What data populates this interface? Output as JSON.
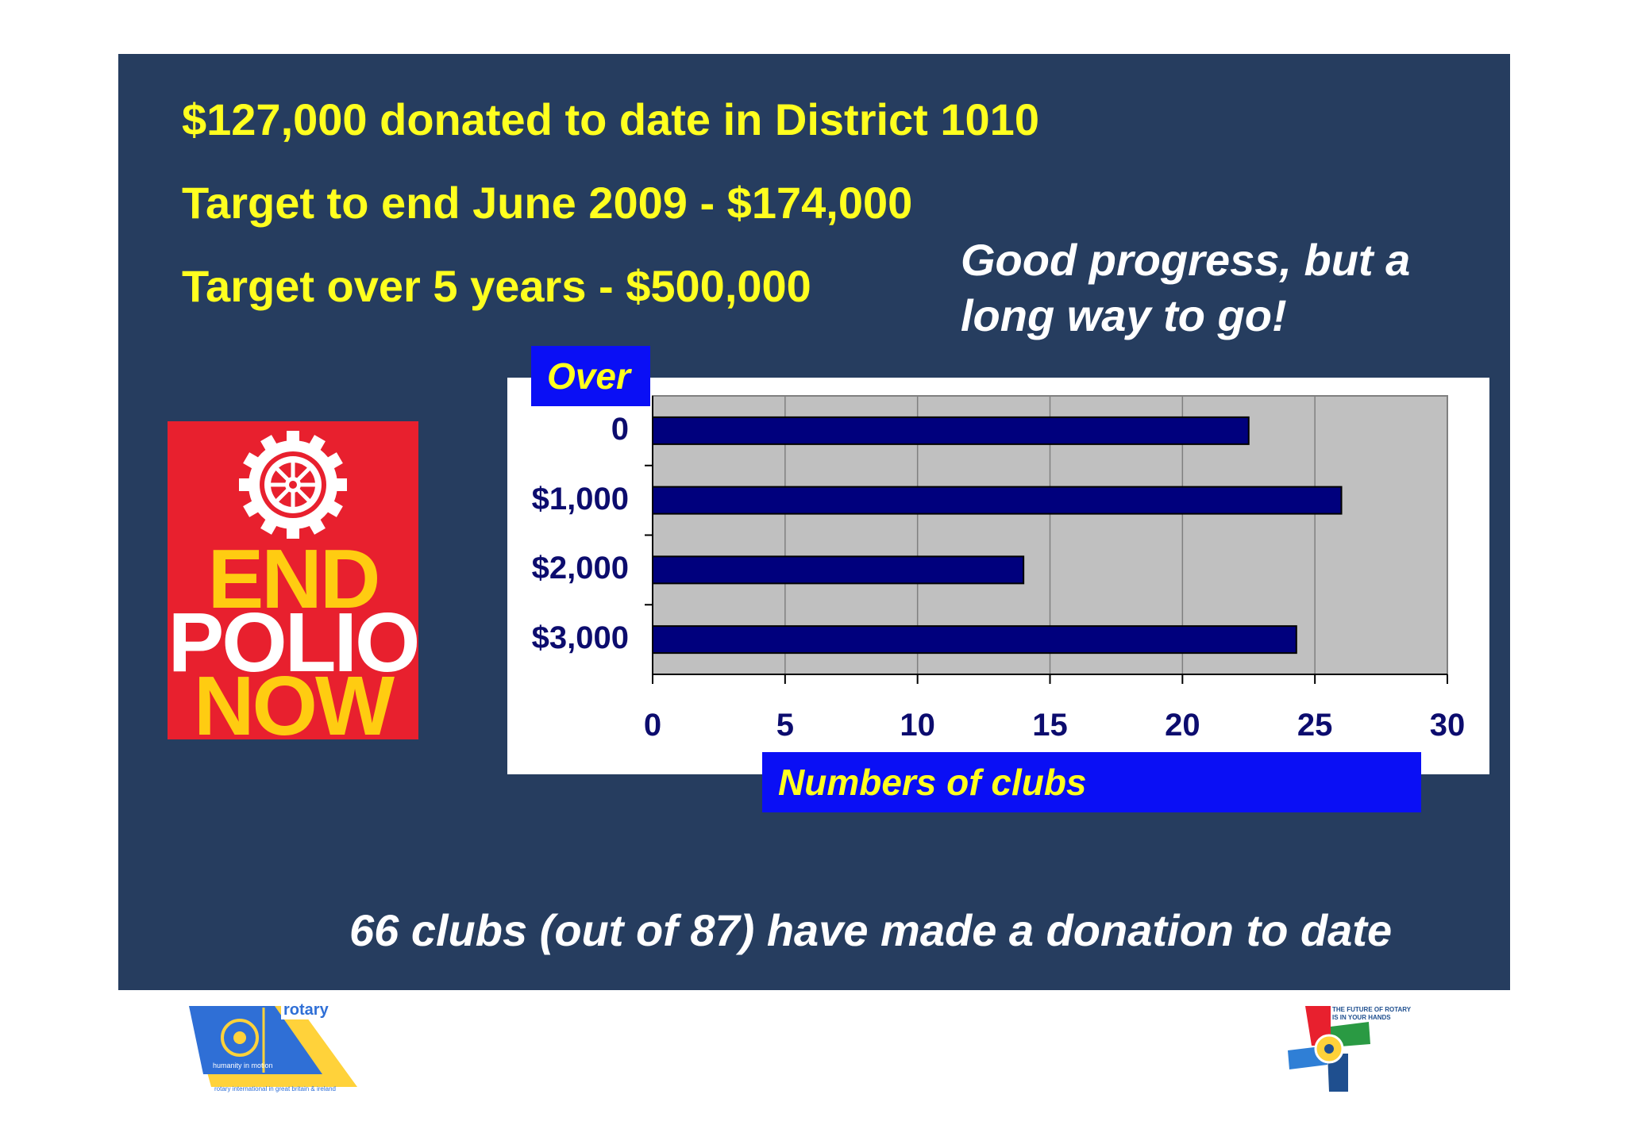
{
  "headlines": {
    "donated": "$127,000 donated to date in District 1010",
    "target_june": "Target to end June 2009 - $174,000",
    "target_5yrs": "Target over 5 years - $500,000"
  },
  "progress_note": {
    "line1": "Good progress, but a",
    "line2": "long way to go!"
  },
  "logo": {
    "line1": "END",
    "line2": "POLIO",
    "line3": "NOW",
    "badge_text": "ROTARY INTERNATIONAL"
  },
  "footer_text": "66 clubs (out of 87) have made a donation to date",
  "colors": {
    "slide_bg": "#263d5f",
    "headline": "#ffff1f",
    "bar": "#00007d",
    "plot_bg": "#c0c0c0",
    "label_box": "#0a0ff5"
  },
  "chart_data": {
    "type": "bar",
    "orientation": "horizontal",
    "ylabel": "Over",
    "xlabel": "Numbers of clubs",
    "categories": [
      "0",
      "$1,000",
      "$2,000",
      "$3,000"
    ],
    "values": [
      22.5,
      26,
      14,
      24.3
    ],
    "xlim": [
      0,
      30
    ],
    "xticks": [
      "0",
      "5",
      "10",
      "15",
      "20",
      "25",
      "30"
    ],
    "grid": true
  },
  "bottom_logos": {
    "rotary_gb": {
      "brand": "rotary",
      "tagline": "humanity in motion",
      "org": "rotary international in great britain & ireland"
    },
    "future": {
      "line1": "THE FUTURE OF ROTARY",
      "line2": "IS IN YOUR HANDS"
    }
  }
}
